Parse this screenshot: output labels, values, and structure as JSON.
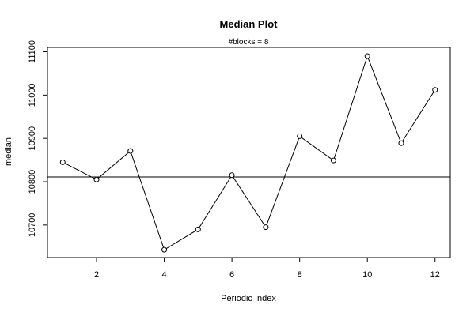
{
  "chart_data": {
    "type": "line",
    "title": "Median Plot",
    "subtitle": "#blocks =  8",
    "xlabel": "Periodic Index",
    "ylabel": "median",
    "xlim": [
      0.55,
      12.45
    ],
    "ylim": [
      10625,
      11110
    ],
    "x_ticks": [
      2,
      4,
      6,
      8,
      10,
      12
    ],
    "y_ticks": [
      10700,
      10800,
      10900,
      11000,
      11100
    ],
    "x": [
      1,
      2,
      3,
      4,
      5,
      6,
      7,
      8,
      9,
      10,
      11,
      12
    ],
    "values": [
      10845,
      10805,
      10871,
      10643,
      10690,
      10815,
      10695,
      10905,
      10849,
      11090,
      10889,
      11012
    ],
    "reference_line": 10811,
    "markers": "open-circle",
    "grid": false,
    "colors": {
      "line": "#000000",
      "background": "#ffffff"
    }
  }
}
